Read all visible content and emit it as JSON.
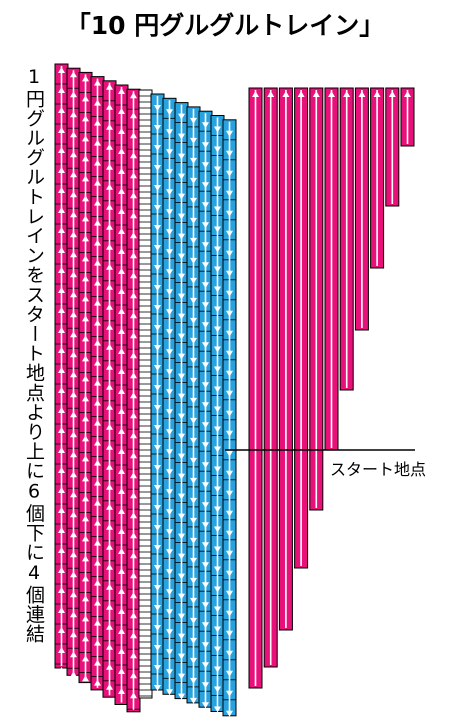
{
  "title": "「10 円グルグルトレイン」",
  "vertical_label": "1円グルグルトレインをスタート地点より上に6個下に4個連結",
  "start_label": "スタート地点",
  "colors": {
    "pink": "#e8117a",
    "blue": "#29a3df",
    "line": "#000000",
    "white": "#ffffff"
  },
  "icons": {
    "up_arrow": "up-arrow-icon",
    "down_arrow": "down-arrow-icon"
  },
  "chart_data": {
    "type": "diagram",
    "pink_rising_columns": 7,
    "white_divider_columns": 1,
    "blue_falling_columns": 7,
    "right_pink_bars": 11,
    "right_bar_arrow": "up"
  }
}
